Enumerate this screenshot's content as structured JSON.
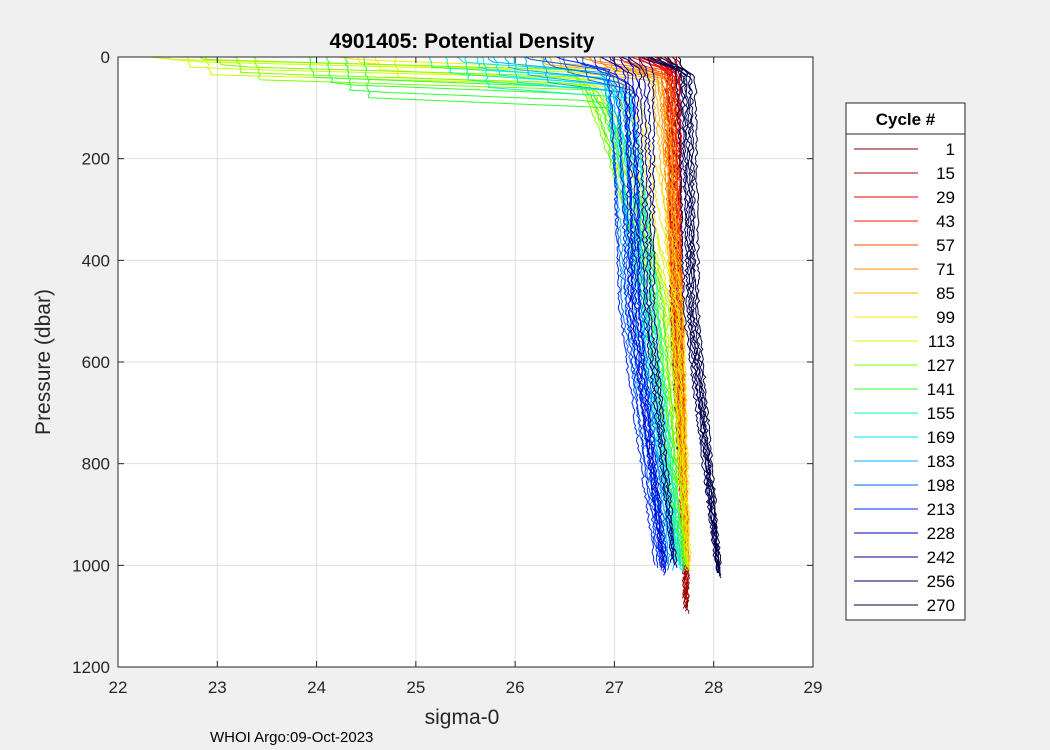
{
  "chart_data": {
    "type": "line",
    "title": "4901405: Potential Density",
    "xlabel": "sigma-0",
    "ylabel": "Pressure (dbar)",
    "xlim": [
      22,
      29
    ],
    "ylim": [
      0,
      1200
    ],
    "y_reversed": true,
    "grid": true,
    "x_ticks": [
      "22",
      "23",
      "24",
      "25",
      "26",
      "27",
      "28",
      "29"
    ],
    "y_ticks": [
      "0",
      "200",
      "400",
      "600",
      "800",
      "1000",
      "1200"
    ],
    "legend": {
      "title": "Cycle #",
      "placement": "right-outside"
    },
    "footer": "WHOI Argo:09-Oct-2023",
    "series": [
      {
        "name": "1",
        "color": "#800000",
        "surface_sigma": 27.55,
        "mixed_depth": 10,
        "sigma_500": 27.62,
        "sigma_1000": 27.72,
        "max_pressure": 1090
      },
      {
        "name": "15",
        "color": "#b30000",
        "surface_sigma": 27.45,
        "mixed_depth": 10,
        "sigma_500": 27.62,
        "sigma_1000": 27.72,
        "max_pressure": 1070
      },
      {
        "name": "29",
        "color": "#e60000",
        "surface_sigma": 27.4,
        "mixed_depth": 10,
        "sigma_500": 27.63,
        "sigma_1000": 27.72,
        "max_pressure": 1000
      },
      {
        "name": "43",
        "color": "#ff1a00",
        "surface_sigma": 27.3,
        "mixed_depth": 12,
        "sigma_500": 27.63,
        "sigma_1000": 27.72,
        "max_pressure": 1000
      },
      {
        "name": "57",
        "color": "#ff4d00",
        "surface_sigma": 27.1,
        "mixed_depth": 15,
        "sigma_500": 27.63,
        "sigma_1000": 27.72,
        "max_pressure": 1000
      },
      {
        "name": "71",
        "color": "#ff8000",
        "surface_sigma": 26.8,
        "mixed_depth": 15,
        "sigma_500": 27.64,
        "sigma_1000": 27.72,
        "max_pressure": 1000
      },
      {
        "name": "85",
        "color": "#ffb300",
        "surface_sigma": 26.3,
        "mixed_depth": 18,
        "sigma_500": 27.64,
        "sigma_1000": 27.72,
        "max_pressure": 1000
      },
      {
        "name": "99",
        "color": "#ffe600",
        "surface_sigma": 24.5,
        "mixed_depth": 20,
        "sigma_500": 27.6,
        "sigma_1000": 27.72,
        "max_pressure": 1000
      },
      {
        "name": "113",
        "color": "#ccff00",
        "surface_sigma": 22.6,
        "mixed_depth": 15,
        "sigma_500": 27.55,
        "sigma_1000": 27.7,
        "max_pressure": 1000
      },
      {
        "name": "127",
        "color": "#80ff00",
        "surface_sigma": 23.1,
        "mixed_depth": 25,
        "sigma_500": 27.45,
        "sigma_1000": 27.68,
        "max_pressure": 1000
      },
      {
        "name": "141",
        "color": "#33ff33",
        "surface_sigma": 24.2,
        "mixed_depth": 60,
        "sigma_500": 27.4,
        "sigma_1000": 27.66,
        "max_pressure": 1000
      },
      {
        "name": "155",
        "color": "#00ffb3",
        "surface_sigma": 25.4,
        "mixed_depth": 40,
        "sigma_500": 27.35,
        "sigma_1000": 27.65,
        "max_pressure": 1000
      },
      {
        "name": "169",
        "color": "#00e6ff",
        "surface_sigma": 25.7,
        "mixed_depth": 30,
        "sigma_500": 27.3,
        "sigma_1000": 27.63,
        "max_pressure": 1000
      },
      {
        "name": "183",
        "color": "#00b3ff",
        "surface_sigma": 26.0,
        "mixed_depth": 30,
        "sigma_500": 27.22,
        "sigma_1000": 27.55,
        "max_pressure": 1000
      },
      {
        "name": "198",
        "color": "#0066ff",
        "surface_sigma": 26.4,
        "mixed_depth": 25,
        "sigma_500": 27.18,
        "sigma_1000": 27.5,
        "max_pressure": 1000
      },
      {
        "name": "213",
        "color": "#0026ff",
        "surface_sigma": 26.7,
        "mixed_depth": 20,
        "sigma_500": 27.15,
        "sigma_1000": 27.45,
        "max_pressure": 1010
      },
      {
        "name": "228",
        "color": "#0000cc",
        "surface_sigma": 27.0,
        "mixed_depth": 15,
        "sigma_500": 27.2,
        "sigma_1000": 27.5,
        "max_pressure": 1010
      },
      {
        "name": "242",
        "color": "#00008c",
        "surface_sigma": 27.2,
        "mixed_depth": 12,
        "sigma_500": 27.35,
        "sigma_1000": 27.6,
        "max_pressure": 1000
      },
      {
        "name": "256",
        "color": "#000066",
        "surface_sigma": 27.4,
        "mixed_depth": 10,
        "sigma_500": 27.75,
        "sigma_1000": 28.04,
        "max_pressure": 1015
      },
      {
        "name": "270",
        "color": "#000040",
        "surface_sigma": 27.5,
        "mixed_depth": 10,
        "sigma_500": 27.8,
        "sigma_1000": 28.05,
        "max_pressure": 1020
      }
    ]
  }
}
